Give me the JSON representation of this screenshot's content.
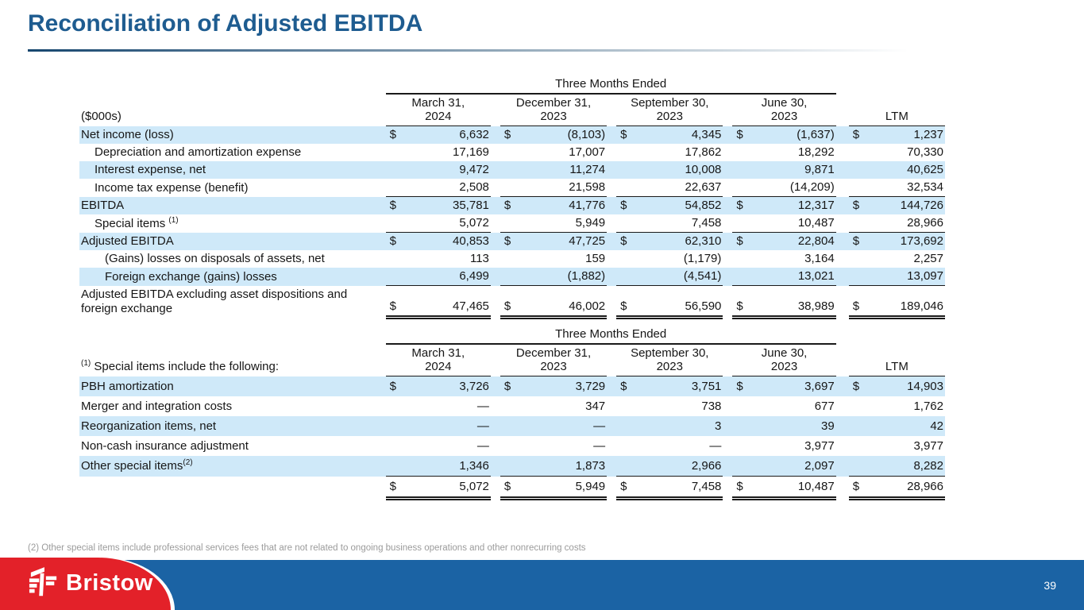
{
  "title": "Reconciliation of Adjusted EBITDA",
  "footnote": "(2) Other special items include professional services fees that are not related to ongoing business operations and other nonrecurring costs",
  "footer": {
    "brand": "Bristow",
    "page_number": "39"
  },
  "colors": {
    "title_blue": "#1e5c90",
    "footer_blue": "#1b63a4",
    "brand_red": "#e32129",
    "row_highlight": "#cfe9f9"
  },
  "tables": [
    {
      "group_header": "Three Months Ended",
      "corner_sup": "",
      "corner_label": "($000s)",
      "columns": [
        [
          "March 31,",
          "2024"
        ],
        [
          "December 31,",
          "2023"
        ],
        [
          "September 30,",
          "2023"
        ],
        [
          "June 30,",
          "2023"
        ],
        [
          "LTM"
        ]
      ],
      "rows": [
        {
          "label": "Net income (loss)",
          "indent": 0,
          "hl": true,
          "dollar": true,
          "border": "",
          "values": [
            "6,632",
            "(8,103)",
            "4,345",
            "(1,637)",
            "1,237"
          ]
        },
        {
          "label": "Depreciation and amortization expense",
          "indent": 1,
          "hl": false,
          "dollar": false,
          "border": "",
          "values": [
            "17,169",
            "17,007",
            "17,862",
            "18,292",
            "70,330"
          ]
        },
        {
          "label": "Interest expense, net",
          "indent": 1,
          "hl": true,
          "dollar": false,
          "border": "",
          "values": [
            "9,472",
            "11,274",
            "10,008",
            "9,871",
            "40,625"
          ]
        },
        {
          "label": "Income tax expense (benefit)",
          "indent": 1,
          "hl": false,
          "dollar": false,
          "border": "single",
          "values": [
            "2,508",
            "21,598",
            "22,637",
            "(14,209)",
            "32,534"
          ]
        },
        {
          "label": "EBITDA",
          "indent": 0,
          "hl": true,
          "dollar": true,
          "border": "",
          "values": [
            "35,781",
            "41,776",
            "54,852",
            "12,317",
            "144,726"
          ]
        },
        {
          "label": "Special items",
          "sup": "(1)",
          "sup_gap": true,
          "indent": 1,
          "hl": false,
          "dollar": false,
          "border": "single",
          "values": [
            "5,072",
            "5,949",
            "7,458",
            "10,487",
            "28,966"
          ]
        },
        {
          "label": "Adjusted EBITDA",
          "indent": 0,
          "hl": true,
          "dollar": true,
          "border": "",
          "values": [
            "40,853",
            "47,725",
            "62,310",
            "22,804",
            "173,692"
          ]
        },
        {
          "label": "(Gains) losses on disposals of assets, net",
          "indent": 2,
          "hl": false,
          "dollar": false,
          "border": "",
          "values": [
            "113",
            "159",
            "(1,179)",
            "3,164",
            "2,257"
          ]
        },
        {
          "label": "Foreign exchange (gains) losses",
          "indent": 2,
          "hl": true,
          "dollar": false,
          "border": "single",
          "values": [
            "6,499",
            "(1,882)",
            "(4,541)",
            "13,021",
            "13,097"
          ]
        },
        {
          "label": "Adjusted EBITDA excluding asset dispositions and foreign exchange",
          "indent": 0,
          "hl": false,
          "dollar": true,
          "border": "double",
          "values": [
            "47,465",
            "46,002",
            "56,590",
            "38,989",
            "189,046"
          ]
        }
      ]
    },
    {
      "group_header": "Three Months Ended",
      "corner_sup": "(1)",
      "corner_label": "Special items include the following:",
      "columns": [
        [
          "March 31,",
          "2024"
        ],
        [
          "December 31,",
          "2023"
        ],
        [
          "September 30,",
          "2023"
        ],
        [
          "June 30,",
          "2023"
        ],
        [
          "LTM"
        ]
      ],
      "rows": [
        {
          "label": "PBH amortization",
          "indent": 0,
          "hl": true,
          "dollar": true,
          "border": "",
          "values": [
            "3,726",
            "3,729",
            "3,751",
            "3,697",
            "14,903"
          ]
        },
        {
          "label": "Merger and integration costs",
          "indent": 0,
          "hl": false,
          "dollar": false,
          "border": "",
          "values": [
            "—",
            "347",
            "738",
            "677",
            "1,762"
          ]
        },
        {
          "label": "Reorganization items, net",
          "indent": 0,
          "hl": true,
          "dollar": false,
          "border": "",
          "values": [
            "—",
            "—",
            "3",
            "39",
            "42"
          ]
        },
        {
          "label": "Non-cash insurance adjustment",
          "indent": 0,
          "hl": false,
          "dollar": false,
          "border": "",
          "values": [
            "—",
            "—",
            "—",
            "3,977",
            "3,977"
          ]
        },
        {
          "label": "Other special items",
          "sup": "(2)",
          "sup_gap": false,
          "indent": 0,
          "hl": true,
          "dollar": false,
          "border": "single",
          "values": [
            "1,346",
            "1,873",
            "2,966",
            "2,097",
            "8,282"
          ]
        },
        {
          "label": "",
          "indent": 0,
          "hl": false,
          "dollar": true,
          "border": "double",
          "values": [
            "5,072",
            "5,949",
            "7,458",
            "10,487",
            "28,966"
          ]
        }
      ]
    }
  ]
}
